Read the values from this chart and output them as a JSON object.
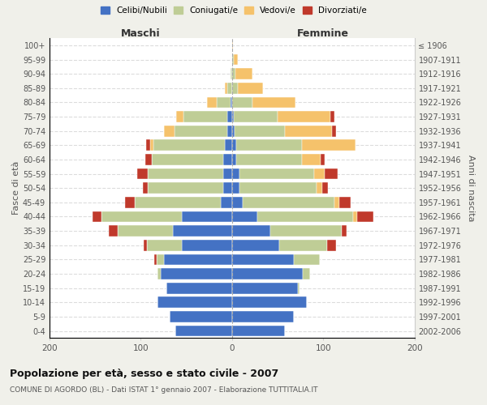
{
  "age_groups": [
    "100+",
    "95-99",
    "90-94",
    "85-89",
    "80-84",
    "75-79",
    "70-74",
    "65-69",
    "60-64",
    "55-59",
    "50-54",
    "45-49",
    "40-44",
    "35-39",
    "30-34",
    "25-29",
    "20-24",
    "15-19",
    "10-14",
    "5-9",
    "0-4"
  ],
  "birth_years": [
    "≤ 1906",
    "1907-1911",
    "1912-1916",
    "1917-1921",
    "1922-1926",
    "1927-1931",
    "1932-1936",
    "1937-1941",
    "1942-1946",
    "1947-1951",
    "1952-1956",
    "1957-1961",
    "1962-1966",
    "1967-1971",
    "1972-1976",
    "1977-1981",
    "1982-1986",
    "1987-1991",
    "1992-1996",
    "1997-2001",
    "2002-2006"
  ],
  "males_celibi": [
    0,
    0,
    0,
    0,
    2,
    5,
    5,
    8,
    10,
    10,
    10,
    12,
    55,
    65,
    55,
    75,
    78,
    72,
    82,
    68,
    62
  ],
  "males_coniugati": [
    0,
    0,
    2,
    5,
    15,
    48,
    58,
    78,
    78,
    82,
    82,
    95,
    88,
    60,
    38,
    8,
    4,
    0,
    0,
    0,
    0
  ],
  "males_vedovi": [
    0,
    0,
    0,
    3,
    10,
    8,
    12,
    4,
    0,
    0,
    0,
    0,
    0,
    0,
    0,
    0,
    0,
    0,
    0,
    0,
    0
  ],
  "males_divorziati": [
    0,
    0,
    0,
    0,
    0,
    0,
    0,
    4,
    7,
    12,
    6,
    10,
    10,
    10,
    4,
    2,
    0,
    0,
    0,
    0,
    0
  ],
  "females_nubili": [
    0,
    0,
    0,
    0,
    0,
    2,
    3,
    5,
    5,
    8,
    8,
    12,
    28,
    42,
    52,
    68,
    78,
    72,
    82,
    68,
    58
  ],
  "females_coniugate": [
    0,
    2,
    4,
    6,
    22,
    48,
    55,
    72,
    72,
    82,
    85,
    100,
    105,
    78,
    52,
    28,
    8,
    2,
    0,
    0,
    0
  ],
  "females_vedove": [
    1,
    4,
    18,
    28,
    48,
    58,
    52,
    58,
    20,
    12,
    6,
    6,
    4,
    0,
    0,
    0,
    0,
    0,
    0,
    0,
    0
  ],
  "females_divorziate": [
    0,
    0,
    0,
    0,
    0,
    4,
    4,
    0,
    5,
    14,
    6,
    12,
    18,
    6,
    10,
    0,
    0,
    0,
    0,
    0,
    0
  ],
  "colors": {
    "celibi": "#4472C4",
    "coniugati": "#BFCD96",
    "vedovi": "#F5C26B",
    "divorziati": "#C0392B"
  },
  "title": "Popolazione per età, sesso e stato civile - 2007",
  "subtitle": "COMUNE DI AGORDO (BL) - Dati ISTAT 1° gennaio 2007 - Elaborazione TUTTITALIA.IT",
  "ylabel_left": "Fasce di età",
  "ylabel_right": "Anni di nascita",
  "xlabel_left": "Maschi",
  "xlabel_right": "Femmine",
  "legend_labels": [
    "Celibi/Nubili",
    "Coniugati/e",
    "Vedovi/e",
    "Divorziati/e"
  ],
  "xlim": 200,
  "background_color": "#f0f0ea",
  "plot_background": "#ffffff"
}
